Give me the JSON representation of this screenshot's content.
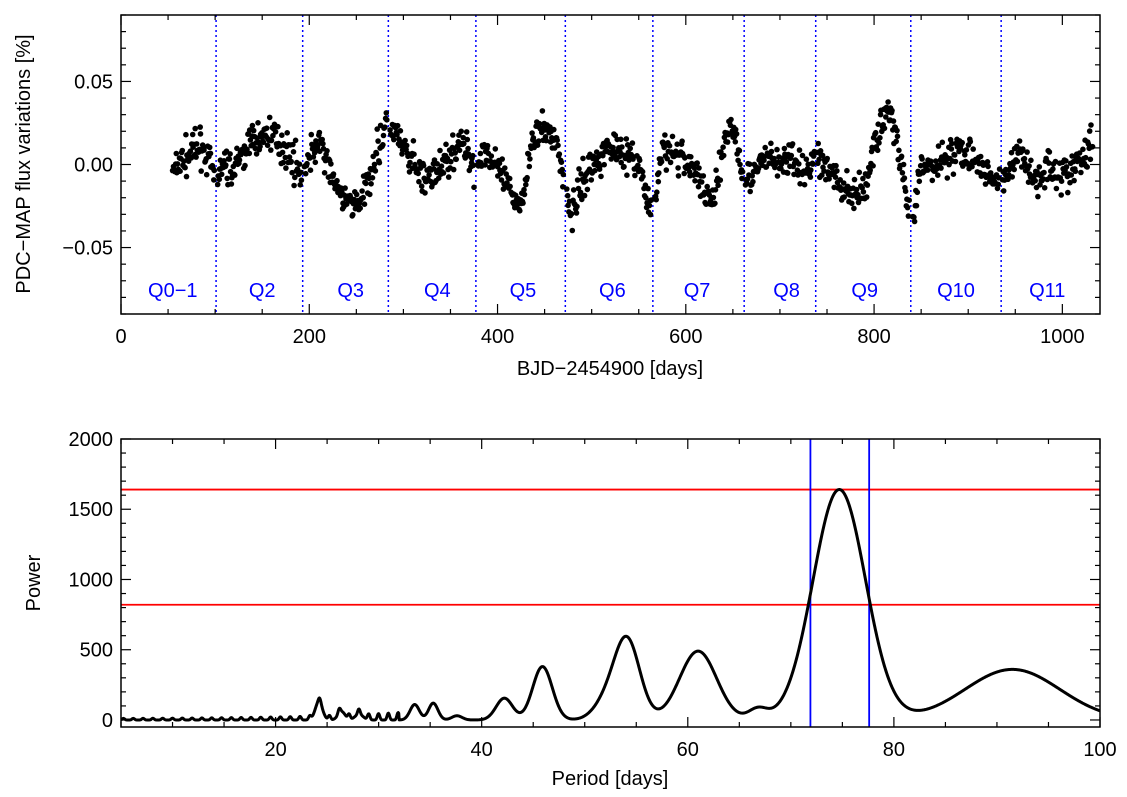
{
  "chart_data": [
    {
      "type": "scatter",
      "title": "",
      "xlabel": "BJD−2454900 [days]",
      "ylabel": "PDC−MAP flux variations [%]",
      "xlim": [
        0,
        1040
      ],
      "ylim": [
        -0.09,
        0.09
      ],
      "xticks": [
        0,
        200,
        400,
        600,
        800,
        1000
      ],
      "yticks": [
        -0.05,
        0.0,
        0.05
      ],
      "ytick_labels": [
        "−0.05",
        "0.00",
        "0.05"
      ],
      "grid": false,
      "point_color": "#000000",
      "quarter_boundaries": [
        101,
        193,
        284,
        377,
        472,
        565,
        662,
        738,
        839,
        935
      ],
      "quarter_line_color": "#0000ff",
      "quarter_labels": [
        {
          "label": "Q0−1",
          "center": 55
        },
        {
          "label": "Q2",
          "center": 150
        },
        {
          "label": "Q3",
          "center": 244
        },
        {
          "label": "Q4",
          "center": 336
        },
        {
          "label": "Q5",
          "center": 427
        },
        {
          "label": "Q6",
          "center": 522
        },
        {
          "label": "Q7",
          "center": 612
        },
        {
          "label": "Q8",
          "center": 707
        },
        {
          "label": "Q9",
          "center": 790
        },
        {
          "label": "Q10",
          "center": 887
        },
        {
          "label": "Q11",
          "center": 984
        }
      ],
      "series_anchors": {
        "x": [
          55,
          65,
          75,
          85,
          93,
          100,
          110,
          120,
          132,
          145,
          158,
          170,
          182,
          192,
          200,
          210,
          220,
          232,
          244,
          255,
          265,
          275,
          282,
          290,
          300,
          310,
          320,
          330,
          340,
          350,
          360,
          370,
          377,
          385,
          395,
          405,
          415,
          425,
          435,
          445,
          455,
          462,
          470,
          478,
          490,
          500,
          510,
          520,
          530,
          540,
          550,
          558,
          565,
          575,
          590,
          600,
          612,
          622,
          632,
          640,
          648,
          660,
          670,
          680,
          690,
          700,
          715,
          728,
          738,
          748,
          760,
          770,
          780,
          790,
          800,
          808,
          815,
          822,
          830,
          836,
          840,
          850,
          860,
          870,
          880,
          890,
          900,
          910,
          920,
          930,
          935,
          945,
          955,
          965,
          975,
          985,
          995,
          1005,
          1015,
          1025,
          1032
        ],
        "y": [
          -0.005,
          0.002,
          0.008,
          0.01,
          0.003,
          -0.01,
          0.0,
          -0.005,
          0.01,
          0.015,
          0.02,
          0.012,
          0.005,
          -0.008,
          0.005,
          0.015,
          0.0,
          -0.02,
          -0.022,
          -0.025,
          -0.005,
          0.012,
          0.025,
          0.02,
          0.008,
          0.002,
          -0.008,
          -0.01,
          0.0,
          0.005,
          0.012,
          0.008,
          -0.004,
          0.01,
          0.002,
          -0.008,
          -0.018,
          -0.025,
          0.01,
          0.02,
          0.02,
          0.015,
          -0.005,
          -0.03,
          -0.01,
          0.0,
          0.005,
          0.012,
          0.01,
          0.005,
          0.0,
          -0.02,
          -0.035,
          0.01,
          0.005,
          0.003,
          -0.005,
          -0.02,
          -0.015,
          0.008,
          0.025,
          0.0,
          -0.01,
          0.0,
          0.005,
          0.0,
          0.003,
          -0.005,
          0.005,
          0.0,
          -0.01,
          -0.015,
          -0.02,
          -0.015,
          0.01,
          0.025,
          0.035,
          0.02,
          -0.005,
          -0.03,
          -0.04,
          0.0,
          -0.003,
          0.002,
          0.005,
          0.01,
          0.005,
          0.0,
          -0.005,
          -0.01,
          -0.015,
          0.0,
          0.01,
          -0.005,
          -0.01,
          0.0,
          -0.005,
          -0.008,
          0.0,
          0.005,
          0.015
        ]
      },
      "scatter_amplitude": 0.0085,
      "scatter_count": 1350
    },
    {
      "type": "line",
      "title": "",
      "xlabel": "Period [days]",
      "ylabel": "Power",
      "xlim": [
        5,
        100
      ],
      "ylim": [
        -50,
        2000
      ],
      "xticks": [
        20,
        40,
        60,
        80,
        100
      ],
      "yticks": [
        0,
        500,
        1000,
        1500,
        2000
      ],
      "grid": false,
      "line_color": "#000000",
      "series": [
        {
          "name": "",
          "peaks": [
            {
              "x": 24.2,
              "p": 130,
              "w": 0.35
            },
            {
              "x": 26.4,
              "p": 60,
              "w": 0.35
            },
            {
              "x": 28.1,
              "p": 40,
              "w": 0.4
            },
            {
              "x": 33.5,
              "p": 110,
              "w": 0.45
            },
            {
              "x": 35.3,
              "p": 120,
              "w": 0.45
            },
            {
              "x": 37.6,
              "p": 30,
              "w": 0.5
            },
            {
              "x": 42.2,
              "p": 155,
              "w": 0.8
            },
            {
              "x": 45.9,
              "p": 380,
              "w": 0.95
            },
            {
              "x": 52.0,
              "p": 110,
              "w": 1.2
            },
            {
              "x": 54.1,
              "p": 570,
              "w": 1.25
            },
            {
              "x": 61.0,
              "p": 490,
              "w": 1.8
            },
            {
              "x": 66.8,
              "p": 75,
              "w": 0.9
            },
            {
              "x": 74.7,
              "p": 1640,
              "w": 2.55
            },
            {
              "x": 91.5,
              "p": 360,
              "w": 4.6
            }
          ]
        }
      ],
      "reference_lines": {
        "horizontal": [
          1640,
          820
        ],
        "horizontal_color": "#ff0000",
        "vertical": [
          71.9,
          77.6
        ],
        "vertical_color": "#0000ff"
      }
    }
  ]
}
